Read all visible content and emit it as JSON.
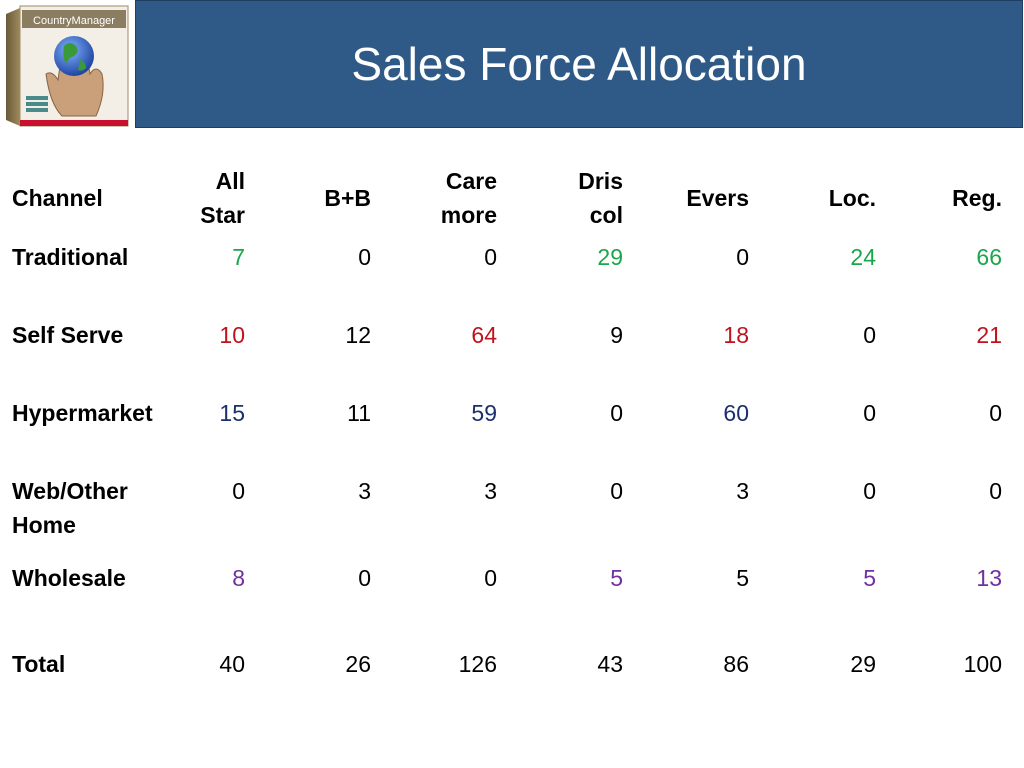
{
  "title": "Sales Force Allocation",
  "logo": {
    "label": "CountryManager",
    "icon": "product-box-globe-hand-icon"
  },
  "colors": {
    "banner": "#2f5a87",
    "green": "#1aa64b",
    "red": "#c0121c",
    "navy": "#1a2f6e",
    "purple": "#7030a0"
  },
  "table": {
    "headers": [
      "Channel",
      "All\nStar",
      "B+B",
      "Care\nmore",
      "Dris\ncol",
      "Evers",
      "Loc.",
      "Reg."
    ],
    "rows": [
      {
        "channel": "Traditional",
        "values": [
          "7",
          "0",
          "0",
          "29",
          "0",
          "24",
          "66"
        ]
      },
      {
        "channel": "Self Serve",
        "values": [
          "10",
          "12",
          "64",
          "9",
          "18",
          "0",
          "21"
        ]
      },
      {
        "channel": "Hypermarket",
        "values": [
          "15",
          "11",
          "59",
          "0",
          "60",
          "0",
          "0"
        ]
      },
      {
        "channel": "Web/Other\nHome",
        "values": [
          "0",
          "3",
          "3",
          "0",
          "3",
          "0",
          "0"
        ]
      },
      {
        "channel": "Wholesale",
        "values": [
          "8",
          "0",
          "0",
          "5",
          "5",
          "5",
          "13"
        ]
      },
      {
        "channel": "Total",
        "values": [
          "40",
          "26",
          "126",
          "43",
          "86",
          "29",
          "100"
        ]
      }
    ]
  }
}
